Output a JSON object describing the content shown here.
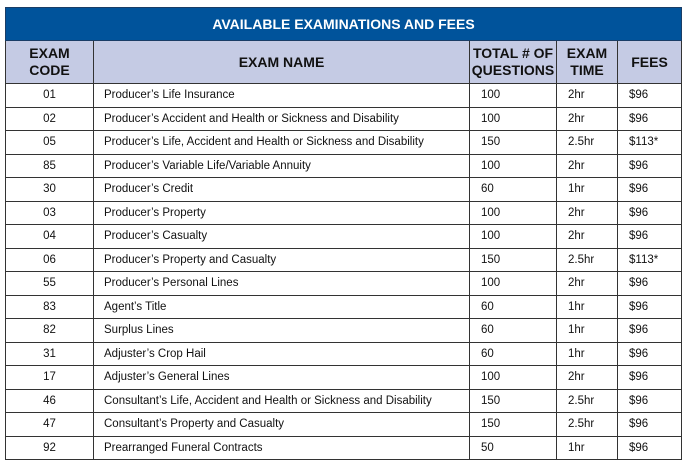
{
  "title": "AVAILABLE EXAMINATIONS AND FEES",
  "headers": {
    "code_1": "EXAM",
    "code_2": "CODE",
    "name": "EXAM NAME",
    "questions_1": "TOTAL # OF",
    "questions_2": "QUESTIONS",
    "time_1": "EXAM",
    "time_2": "TIME",
    "fees": "FEES"
  },
  "rows": [
    [
      "01",
      "Producer’s Life Insurance",
      "100",
      "2hr",
      "$96"
    ],
    [
      "02",
      "Producer’s Accident and Health or Sickness and Disability",
      "100",
      "2hr",
      "$96"
    ],
    [
      "05",
      "Producer’s Life, Accident and Health or Sickness and Disability",
      "150",
      "2.5hr",
      "$113*"
    ],
    [
      "85",
      "Producer’s Variable Life/Variable Annuity",
      "100",
      "2hr",
      "$96"
    ],
    [
      "30",
      "Producer’s Credit",
      "60",
      "1hr",
      "$96"
    ],
    [
      "03",
      "Producer’s Property",
      "100",
      "2hr",
      "$96"
    ],
    [
      "04",
      "Producer’s Casualty",
      "100",
      "2hr",
      "$96"
    ],
    [
      "06",
      "Producer’s Property and Casualty",
      "150",
      "2.5hr",
      "$113*"
    ],
    [
      "55",
      "Producer’s Personal Lines",
      "100",
      "2hr",
      "$96"
    ],
    [
      "83",
      "Agent’s Title",
      "60",
      "1hr",
      "$96"
    ],
    [
      "82",
      "Surplus Lines",
      "60",
      "1hr",
      "$96"
    ],
    [
      "31",
      "Adjuster’s Crop Hail",
      "60",
      "1hr",
      "$96"
    ],
    [
      "17",
      "Adjuster’s General Lines",
      "100",
      "2hr",
      "$96"
    ],
    [
      "46",
      "Consultant’s Life, Accident and Health or Sickness and Disability",
      "150",
      "2.5hr",
      "$96"
    ],
    [
      "47",
      "Consultant’s Property and Casualty",
      "150",
      "2.5hr",
      "$96"
    ],
    [
      "92",
      "Prearranged Funeral Contracts",
      "50",
      "1hr",
      "$96"
    ]
  ]
}
